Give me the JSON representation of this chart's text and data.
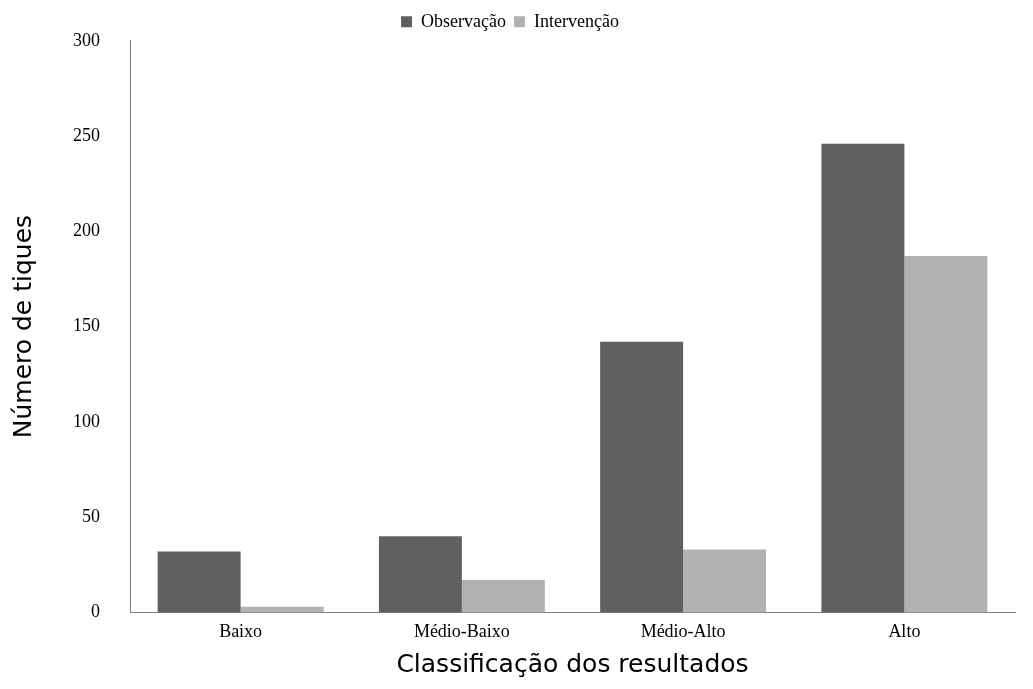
{
  "chart_data": {
    "type": "bar",
    "xlabel": "Classificação dos resultados",
    "ylabel": "Número de tiques",
    "categories": [
      "Baixo",
      "Médio-Baixo",
      "Médio-Alto",
      "Alto"
    ],
    "series": [
      {
        "name": "Observação",
        "color": "#606060",
        "values": [
          32,
          40,
          142,
          246
        ]
      },
      {
        "name": "Intervenção",
        "color": "#b2b2b2",
        "values": [
          3,
          17,
          33,
          187
        ]
      }
    ],
    "ylim": [
      0,
      300
    ],
    "yticks": [
      0,
      50,
      100,
      150,
      200,
      250,
      300
    ],
    "grid": false,
    "legend": "top"
  }
}
